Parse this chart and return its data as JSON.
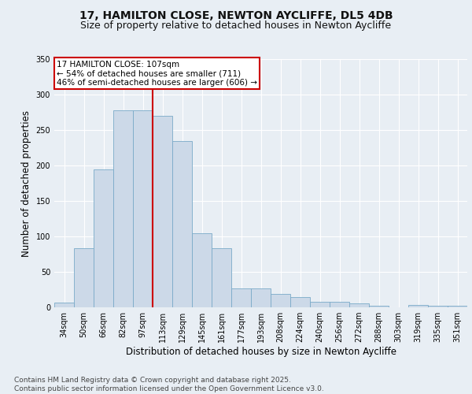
{
  "title_line1": "17, HAMILTON CLOSE, NEWTON AYCLIFFE, DL5 4DB",
  "title_line2": "Size of property relative to detached houses in Newton Aycliffe",
  "xlabel": "Distribution of detached houses by size in Newton Aycliffe",
  "ylabel": "Number of detached properties",
  "categories": [
    "34sqm",
    "50sqm",
    "66sqm",
    "82sqm",
    "97sqm",
    "113sqm",
    "129sqm",
    "145sqm",
    "161sqm",
    "177sqm",
    "193sqm",
    "208sqm",
    "224sqm",
    "240sqm",
    "256sqm",
    "272sqm",
    "288sqm",
    "303sqm",
    "319sqm",
    "335sqm",
    "351sqm"
  ],
  "values": [
    7,
    83,
    195,
    278,
    278,
    270,
    235,
    105,
    83,
    27,
    27,
    19,
    14,
    8,
    8,
    6,
    2,
    0,
    3,
    2,
    2
  ],
  "bar_color": "#ccd9e8",
  "bar_edge_color": "#7aaac8",
  "vline_x_index": 5.0,
  "annotation_text": "17 HAMILTON CLOSE: 107sqm\n← 54% of detached houses are smaller (711)\n46% of semi-detached houses are larger (606) →",
  "annotation_box_color": "#ffffff",
  "annotation_box_edge_color": "#cc0000",
  "vline_color": "#cc0000",
  "ylim": [
    0,
    350
  ],
  "yticks": [
    0,
    50,
    100,
    150,
    200,
    250,
    300,
    350
  ],
  "footer_text": "Contains HM Land Registry data © Crown copyright and database right 2025.\nContains public sector information licensed under the Open Government Licence v3.0.",
  "background_color": "#e8eef4",
  "plot_background_color": "#e8eef4",
  "grid_color": "#ffffff",
  "title_fontsize": 10,
  "subtitle_fontsize": 9,
  "axis_label_fontsize": 8.5,
  "tick_fontsize": 7,
  "annotation_fontsize": 7.5,
  "footer_fontsize": 6.5
}
